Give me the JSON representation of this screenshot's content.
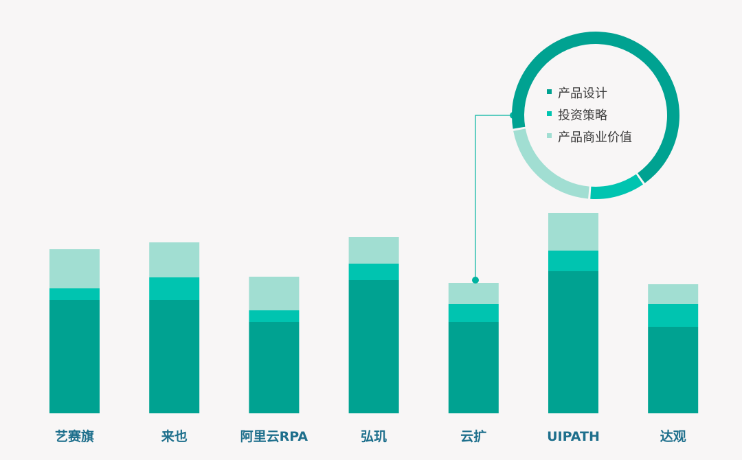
{
  "chart_data": [
    {
      "type": "bar",
      "stacked": true,
      "categories": [
        "艺赛旗",
        "来也",
        "阿里云RPA",
        "弘玑",
        "云扩",
        "UIPATH",
        "达观"
      ],
      "series": [
        {
          "name": "产品设计",
          "color": "#00a291",
          "values": [
            165,
            165,
            133,
            194,
            133,
            207,
            126
          ]
        },
        {
          "name": "投资策略",
          "color": "#00c4b0",
          "values": [
            17,
            33,
            17,
            24,
            26,
            30,
            33
          ]
        },
        {
          "name": "产品商业价值",
          "color": "#a1ded2",
          "values": [
            57,
            51,
            49,
            39,
            31,
            55,
            29
          ]
        }
      ],
      "ylim": [
        0,
        300
      ],
      "grid": false,
      "legend": "inside-donut"
    },
    {
      "type": "pie",
      "donut": true,
      "slices": [
        {
          "name": "产品设计",
          "value": 68,
          "color": "#00a291"
        },
        {
          "name": "投资策略",
          "value": 11,
          "color": "#00c4b0"
        },
        {
          "name": "产品商业价值",
          "value": 21,
          "color": "#a1ded2"
        }
      ]
    }
  ]
}
